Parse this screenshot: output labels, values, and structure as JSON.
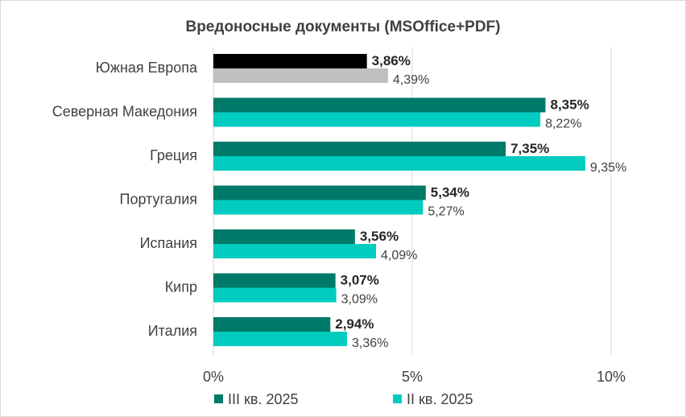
{
  "chart_data": {
    "type": "bar",
    "orientation": "horizontal",
    "title": "Вредоносные документы (MSOffice+PDF)",
    "categories": [
      "Южная Европа",
      "Северная Македония",
      "Греция",
      "Португалия",
      "Испания",
      "Кипр",
      "Италия"
    ],
    "series": [
      {
        "name": "III кв. 2025",
        "color": "#007a68",
        "values": [
          3.86,
          8.35,
          7.35,
          5.34,
          3.56,
          3.07,
          2.94
        ],
        "labels": [
          "3,86%",
          "8,35%",
          "7,35%",
          "5,34%",
          "3,56%",
          "3,07%",
          "2,94%"
        ]
      },
      {
        "name": "II кв. 2025",
        "color": "#00ccbf",
        "values": [
          4.39,
          8.22,
          9.35,
          5.27,
          4.09,
          3.09,
          3.36
        ],
        "labels": [
          "4,39%",
          "8,22%",
          "9,35%",
          "5,27%",
          "4,09%",
          "3,09%",
          "3,36%"
        ]
      }
    ],
    "highlight": {
      "category_index": 0,
      "colors": [
        "#000000",
        "#bfbfbf"
      ]
    },
    "xlim": [
      0,
      10
    ],
    "xticks": [
      0,
      5,
      10
    ],
    "xtick_labels": [
      "0%",
      "5%",
      "10%"
    ],
    "grid": "vertical",
    "legend_position": "bottom"
  }
}
